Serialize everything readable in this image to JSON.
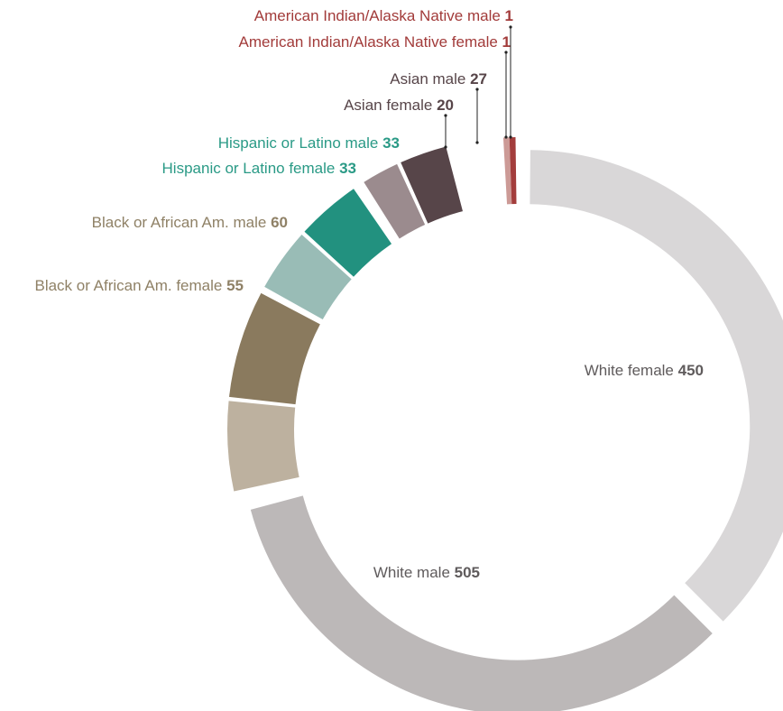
{
  "chart_data": {
    "type": "pie",
    "donut": true,
    "series": [
      {
        "label": "White female",
        "value": 450,
        "color": "#d9d7d8",
        "text_color": "#5f5b5c"
      },
      {
        "label": "White male",
        "value": 505,
        "color": "#bcb8b8",
        "text_color": "#5f5b5c"
      },
      {
        "label": "Black or African Am. female",
        "value": 55,
        "color": "#bdb19f",
        "text_color": "#8f8166"
      },
      {
        "label": "Black or African Am. male",
        "value": 60,
        "color": "#8a7a5e",
        "text_color": "#8f8166"
      },
      {
        "label": "Hispanic or Latino female",
        "value": 33,
        "color": "#99bcb6",
        "text_color": "#2a9a86"
      },
      {
        "label": "Hispanic or Latino male",
        "value": 33,
        "color": "#22917f",
        "text_color": "#2a9a86"
      },
      {
        "label": "Asian female",
        "value": 20,
        "color": "#9b8b8e",
        "text_color": "#574549"
      },
      {
        "label": "Asian male",
        "value": 27,
        "color": "#574549",
        "text_color": "#574549"
      },
      {
        "label": "American Indian/Alaska Native female",
        "value": 1,
        "color": "#cc9a96",
        "text_color": "#a23b3a"
      },
      {
        "label": "American Indian/Alaska Native male",
        "value": 1,
        "color": "#a33d3c",
        "text_color": "#a23b3a"
      }
    ]
  }
}
